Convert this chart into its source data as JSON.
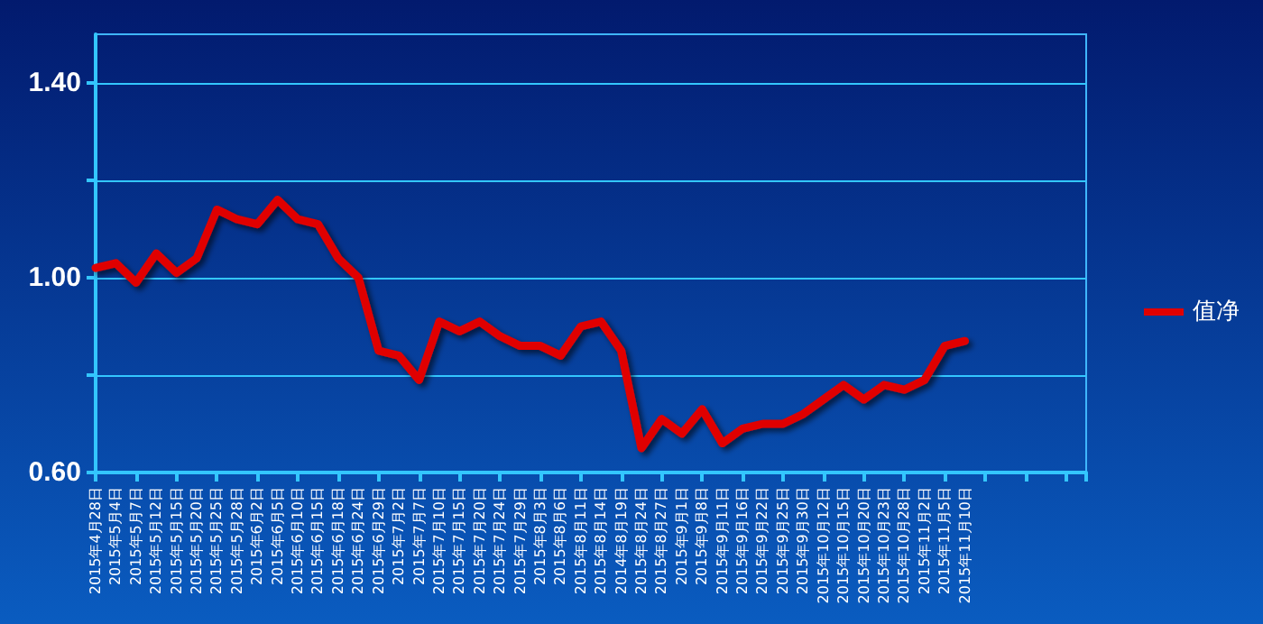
{
  "chart_data": {
    "type": "line",
    "categories": [
      "2015年4月28日",
      "2015年5月4日",
      "2015年5月7日",
      "2015年5月12日",
      "2015年5月15日",
      "2015年5月20日",
      "2015年5月25日",
      "2015年5月28日",
      "2015年6月2日",
      "2015年6月5日",
      "2015年6月10日",
      "2015年6月15日",
      "2015年6月18日",
      "2015年6月24日",
      "2015年6月29日",
      "2015年7月2日",
      "2015年7月7日",
      "2015年7月10日",
      "2015年7月15日",
      "2015年7月20日",
      "2015年7月24日",
      "2015年7月29日",
      "2015年8月3日",
      "2015年8月6日",
      "2015年8月11日",
      "2015年8月14日",
      "2014年8月19日",
      "2015年8月24日",
      "2015年8月27日",
      "2015年9月1日",
      "2015年9月8日",
      "2015年9月11日",
      "2015年9月16日",
      "2015年9月22日",
      "2015年9月25日",
      "2015年9月30日",
      "2015年10月12日",
      "2015年10月15日",
      "2015年10月20日",
      "2015年10月23日",
      "2015年10月28日",
      "2015年11月2日",
      "2015年11月5日",
      "2015年11月10日",
      null,
      null,
      null,
      null,
      null,
      null
    ],
    "series": [
      {
        "name": "值净",
        "color": "#e00000",
        "values": [
          1.02,
          1.03,
          0.99,
          1.05,
          1.01,
          1.04,
          1.14,
          1.12,
          1.11,
          1.16,
          1.12,
          1.11,
          1.04,
          1.0,
          0.85,
          0.84,
          0.79,
          0.91,
          0.89,
          0.91,
          0.88,
          0.86,
          0.86,
          0.84,
          0.9,
          0.91,
          0.85,
          0.65,
          0.71,
          0.68,
          0.73,
          0.66,
          0.69,
          0.7,
          0.7,
          0.72,
          0.75,
          0.78,
          0.75,
          0.78,
          0.77,
          0.79,
          0.86,
          0.87,
          null,
          null,
          null,
          null,
          null,
          null
        ]
      }
    ],
    "ylim": [
      0.6,
      1.5
    ],
    "yticks": [
      {
        "value": 0.6,
        "label": "0.60"
      },
      {
        "value": 0.8,
        "label": null
      },
      {
        "value": 1.0,
        "label": "1.00"
      },
      {
        "value": 1.2,
        "label": null
      },
      {
        "value": 1.4,
        "label": "1.40"
      }
    ],
    "grid": "y",
    "legend": "right",
    "marker": "none",
    "line_style": "solid"
  }
}
